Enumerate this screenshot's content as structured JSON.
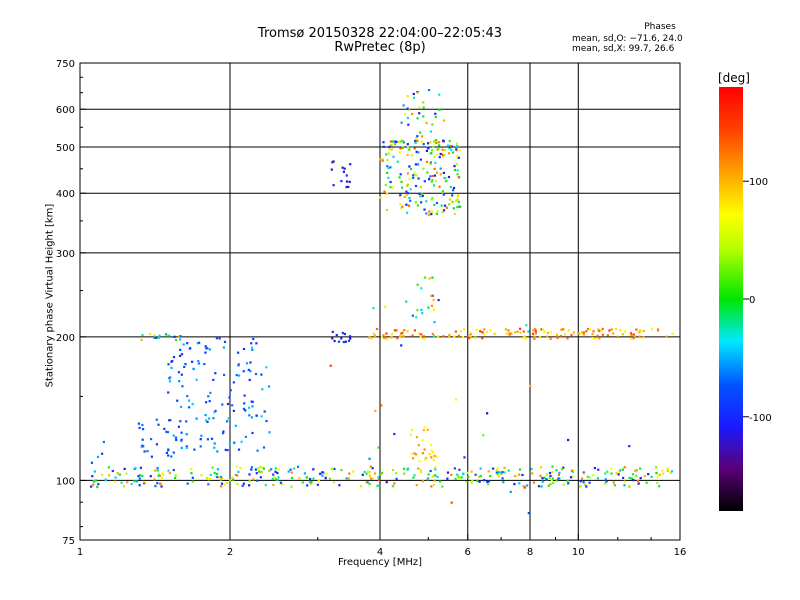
{
  "chart_data": {
    "type": "scatter",
    "title": "Tromsø 20150328 22:04:00–22:05:43",
    "subtitle": "RwPretec (8p)",
    "legend": {
      "heading": "Phases",
      "o_line": "mean, sd,O: −71.6, 24.0",
      "x_line": "mean, sd,X:  99.7, 26.6"
    },
    "xlabel": "Frequency [MHz]",
    "ylabel": "Stationary phase Virtual Height [km]",
    "xscale": "log",
    "yscale": "log",
    "xlim": [
      1,
      16
    ],
    "ylim": [
      75,
      750
    ],
    "x_ticks": [
      {
        "value": 1,
        "label": "1"
      },
      {
        "value": 2,
        "label": "2"
      },
      {
        "value": 4,
        "label": "4"
      },
      {
        "value": 6,
        "label": "6"
      },
      {
        "value": 8,
        "label": "8"
      },
      {
        "value": 10,
        "label": "10"
      },
      {
        "value": 16,
        "label": "16"
      }
    ],
    "y_ticks": [
      {
        "value": 75,
        "label": "75"
      },
      {
        "value": 100,
        "label": "100"
      },
      {
        "value": 200,
        "label": "200"
      },
      {
        "value": 300,
        "label": "300"
      },
      {
        "value": 400,
        "label": "400"
      },
      {
        "value": 500,
        "label": "500"
      },
      {
        "value": 600,
        "label": "600"
      },
      {
        "value": 750,
        "label": "750"
      }
    ],
    "x_grid": [
      2,
      4,
      6,
      8,
      10
    ],
    "y_grid": [
      100,
      200,
      300,
      400,
      500,
      600
    ],
    "colorbar": {
      "label": "[deg]",
      "range": [
        -180,
        180
      ],
      "ticks": [
        {
          "value": 100,
          "label": "100"
        },
        {
          "value": 0,
          "label": "0"
        },
        {
          "value": -100,
          "label": "-100"
        }
      ]
    },
    "clusters": [
      {
        "name": "E-layer trace",
        "x_range": [
          1.05,
          15.5
        ],
        "y_range": [
          97,
          107
        ],
        "phase_range": [
          -120,
          130
        ],
        "count": 380
      },
      {
        "name": "low-frequency E echoes",
        "x_range": [
          1.05,
          1.12
        ],
        "y_range": [
          108,
          125
        ],
        "phase_range": [
          -80,
          -50
        ],
        "count": 4
      },
      {
        "name": "sporadic blanket",
        "x_range": [
          1.5,
          2.4
        ],
        "y_range": [
          115,
          200
        ],
        "phase_range": [
          -100,
          -40
        ],
        "count": 140
      },
      {
        "name": "ramp echoes",
        "x_range": [
          1.3,
          1.6
        ],
        "y_range": [
          112,
          135
        ],
        "phase_range": [
          -90,
          -60
        ],
        "count": 30
      },
      {
        "name": "200 km trace",
        "x_range": [
          1.3,
          1.6
        ],
        "y_range": [
          197,
          203
        ],
        "phase_range": [
          -100,
          120
        ],
        "count": 16
      },
      {
        "name": "200 km trace",
        "x_range": [
          3.2,
          3.5
        ],
        "y_range": [
          195,
          205
        ],
        "phase_range": [
          -130,
          -80
        ],
        "count": 14
      },
      {
        "name": "200 km trace",
        "x_range": [
          3.8,
          15.5
        ],
        "y_range": [
          198,
          208
        ],
        "phase_range": [
          60,
          150
        ],
        "count": 150
      },
      {
        "name": "F-layer cusp",
        "x_range": [
          4.0,
          5.8
        ],
        "y_range": [
          360,
          520
        ],
        "phase_range": [
          -130,
          140
        ],
        "count": 210
      },
      {
        "name": "F-layer upper",
        "x_range": [
          4.4,
          5.4
        ],
        "y_range": [
          500,
          660
        ],
        "phase_range": [
          -120,
          120
        ],
        "count": 40
      },
      {
        "name": "mid-height scatter",
        "x_range": [
          4.5,
          5.3
        ],
        "y_range": [
          210,
          270
        ],
        "phase_range": [
          -110,
          120
        ],
        "count": 18
      },
      {
        "name": "low-F spread",
        "x_range": [
          3.2,
          3.5
        ],
        "y_range": [
          410,
          470
        ],
        "phase_range": [
          -130,
          -90
        ],
        "count": 14
      },
      {
        "name": "low-F scatter",
        "x_range": [
          4.6,
          5.2
        ],
        "y_range": [
          108,
          130
        ],
        "phase_range": [
          60,
          120
        ],
        "count": 25
      },
      {
        "name": "isolated points",
        "x_range": [
          3.0,
          15.0
        ],
        "y_range": [
          85,
          240
        ],
        "phase_range": [
          -140,
          160
        ],
        "count": 30
      }
    ]
  }
}
